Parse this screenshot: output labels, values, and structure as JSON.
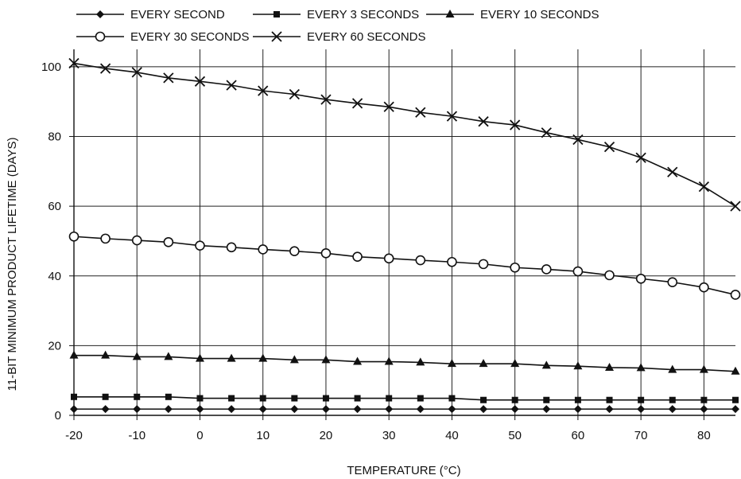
{
  "chart_data": {
    "type": "line",
    "title": "",
    "xlabel": "TEMPERATURE (°C)",
    "ylabel": "11-BIT MINIMUM PRODUCT LIFETIME (DAYS)",
    "xlim": [
      -20,
      85
    ],
    "ylim": [
      0,
      105
    ],
    "xticks": [
      -20,
      -10,
      0,
      10,
      20,
      30,
      40,
      50,
      60,
      70,
      80
    ],
    "yticks": [
      0,
      20,
      40,
      60,
      80,
      100
    ],
    "grid": true,
    "legend_position": "top",
    "x": [
      -20,
      -15,
      -10,
      -5,
      0,
      5,
      10,
      15,
      20,
      25,
      30,
      35,
      40,
      45,
      50,
      55,
      60,
      65,
      70,
      75,
      80,
      85
    ],
    "series": [
      {
        "name": "EVERY SECOND",
        "marker": "diamond",
        "values": [
          1.8,
          1.8,
          1.8,
          1.8,
          1.8,
          1.8,
          1.8,
          1.8,
          1.8,
          1.8,
          1.8,
          1.8,
          1.8,
          1.8,
          1.8,
          1.8,
          1.8,
          1.8,
          1.8,
          1.8,
          1.8,
          1.8
        ]
      },
      {
        "name": "EVERY 3 SECONDS",
        "marker": "square",
        "values": [
          5.3,
          5.3,
          5.3,
          5.3,
          4.9,
          4.9,
          4.9,
          4.9,
          4.9,
          4.9,
          4.9,
          4.9,
          4.9,
          4.4,
          4.4,
          4.4,
          4.4,
          4.4,
          4.4,
          4.4,
          4.4,
          4.4
        ]
      },
      {
        "name": "EVERY 10 SECONDS",
        "marker": "triangle",
        "values": [
          17.2,
          17.2,
          16.8,
          16.8,
          16.3,
          16.3,
          16.3,
          15.9,
          15.9,
          15.4,
          15.4,
          15.2,
          14.8,
          14.8,
          14.8,
          14.3,
          14.1,
          13.7,
          13.6,
          13.1,
          13.1,
          12.6
        ]
      },
      {
        "name": "EVERY 30 SECONDS",
        "marker": "circle",
        "values": [
          51.3,
          50.7,
          50.2,
          49.7,
          48.7,
          48.2,
          47.6,
          47.1,
          46.5,
          45.5,
          45.0,
          44.5,
          44.0,
          43.4,
          42.4,
          41.9,
          41.3,
          40.2,
          39.2,
          38.2,
          36.7,
          34.6
        ]
      },
      {
        "name": "EVERY 60 SECONDS",
        "marker": "x",
        "values": [
          101.0,
          99.5,
          98.4,
          96.8,
          95.8,
          94.7,
          93.1,
          92.1,
          90.6,
          89.5,
          88.5,
          86.9,
          85.8,
          84.3,
          83.3,
          81.1,
          79.1,
          77.0,
          73.9,
          69.8,
          65.6,
          60.0
        ]
      }
    ]
  }
}
